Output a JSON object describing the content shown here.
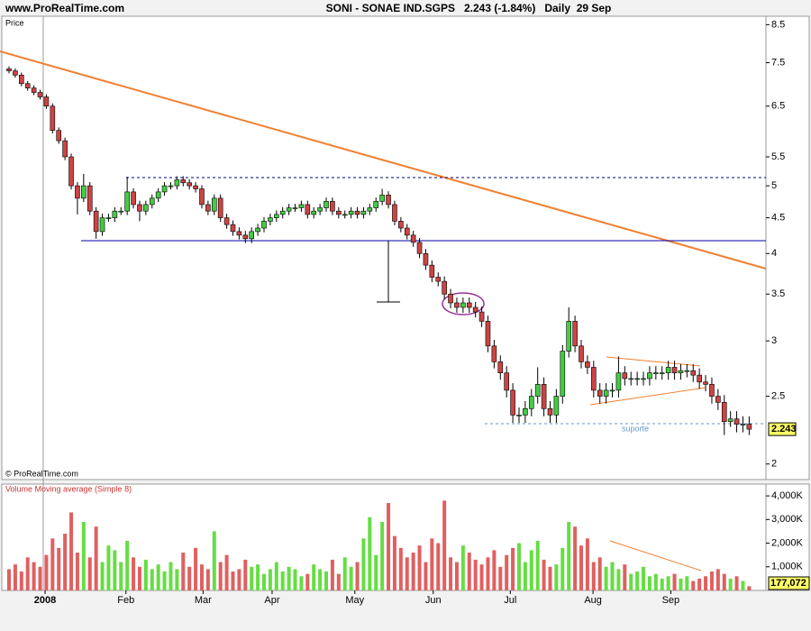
{
  "header": {
    "site": "www.ProRealTime.com",
    "title": "SONI - SONAE IND.SGPS   2.243 (-1.84%)   Daily  29 Sep"
  },
  "chart_data": [
    {
      "type": "candlestick",
      "title": "Price",
      "copyright": "© ProRealTime.com",
      "annotation": "suporte",
      "log_scale": true,
      "up_color": "#44cc44",
      "down_color": "#cc4444",
      "xlim": [
        -1.16,
        121.7
      ],
      "ylim": [
        1.9,
        8.74
      ],
      "yticks": [
        8.5,
        7.5,
        6.5,
        5.5,
        5,
        4.5,
        4,
        3.5,
        3,
        2.5,
        2
      ],
      "open": [
        7.35,
        7.3,
        7.2,
        7.0,
        6.9,
        6.8,
        6.7,
        6.5,
        6.0,
        5.8,
        5.5,
        5.0,
        4.8,
        5.0,
        4.6,
        4.3,
        4.5,
        4.5,
        4.6,
        4.6,
        4.9,
        4.7,
        4.6,
        4.7,
        4.8,
        4.9,
        5.0,
        5.0,
        5.1,
        5.05,
        5.0,
        4.95,
        4.7,
        4.6,
        4.8,
        4.5,
        4.4,
        4.3,
        4.25,
        4.2,
        4.3,
        4.35,
        4.45,
        4.5,
        4.55,
        4.6,
        4.65,
        4.65,
        4.7,
        4.55,
        4.6,
        4.65,
        4.75,
        4.6,
        4.55,
        4.55,
        4.6,
        4.55,
        4.6,
        4.65,
        4.75,
        4.85,
        4.7,
        4.45,
        4.35,
        4.25,
        4.15,
        4.0,
        3.85,
        3.7,
        3.65,
        3.5,
        3.4,
        3.35,
        3.4,
        3.35,
        3.3,
        3.2,
        2.95,
        2.8,
        2.7,
        2.55,
        2.35,
        2.35,
        2.4,
        2.5,
        2.6,
        2.4,
        2.35,
        2.5,
        2.9,
        3.2,
        2.95,
        2.8,
        2.75,
        2.55,
        2.5,
        2.55,
        2.55,
        2.7,
        2.65,
        2.65,
        2.65,
        2.65,
        2.7,
        2.7,
        2.7,
        2.75,
        2.7,
        2.72,
        2.72,
        2.68,
        2.62,
        2.6,
        2.5,
        2.45,
        2.3,
        2.32,
        2.28,
        2.28
      ],
      "high": [
        7.41,
        7.36,
        7.26,
        7.06,
        6.96,
        6.86,
        6.76,
        6.56,
        6.06,
        5.86,
        5.56,
        5.06,
        5.2,
        5.06,
        4.66,
        4.56,
        4.56,
        4.66,
        4.66,
        5.15,
        4.96,
        4.76,
        4.76,
        4.86,
        4.96,
        5.06,
        5.06,
        5.16,
        5.16,
        5.11,
        5.06,
        5.01,
        4.76,
        4.86,
        4.86,
        4.56,
        4.46,
        4.36,
        4.31,
        4.36,
        4.41,
        4.51,
        4.56,
        4.61,
        4.66,
        4.71,
        4.71,
        4.76,
        4.76,
        4.66,
        4.71,
        4.81,
        4.81,
        4.66,
        4.61,
        4.66,
        4.66,
        4.66,
        4.71,
        4.81,
        4.95,
        4.91,
        4.76,
        4.51,
        4.41,
        4.31,
        4.21,
        4.06,
        3.91,
        3.76,
        3.71,
        3.56,
        3.46,
        3.46,
        3.46,
        3.41,
        3.36,
        3.26,
        3.01,
        2.86,
        2.76,
        2.61,
        2.41,
        2.46,
        2.56,
        2.75,
        2.66,
        2.46,
        2.56,
        2.96,
        3.35,
        3.26,
        3.01,
        2.86,
        2.81,
        2.61,
        2.61,
        2.61,
        2.85,
        2.76,
        2.71,
        2.71,
        2.71,
        2.76,
        2.76,
        2.76,
        2.81,
        2.81,
        2.78,
        2.78,
        2.78,
        2.74,
        2.68,
        2.66,
        2.56,
        2.51,
        2.38,
        2.38,
        2.34,
        2.34
      ],
      "low": [
        7.24,
        7.14,
        6.94,
        6.84,
        6.74,
        6.64,
        6.44,
        5.94,
        5.74,
        5.44,
        4.94,
        4.55,
        4.74,
        4.54,
        4.2,
        4.24,
        4.44,
        4.44,
        4.54,
        4.54,
        4.64,
        4.45,
        4.54,
        4.64,
        4.74,
        4.84,
        4.94,
        4.94,
        4.99,
        4.94,
        4.89,
        4.64,
        4.54,
        4.54,
        4.44,
        4.34,
        4.24,
        4.19,
        4.14,
        4.14,
        4.24,
        4.29,
        4.39,
        4.44,
        4.49,
        4.54,
        4.59,
        4.59,
        4.49,
        4.49,
        4.54,
        4.59,
        4.54,
        4.49,
        4.49,
        4.49,
        4.49,
        4.49,
        4.54,
        4.59,
        4.69,
        4.64,
        4.39,
        4.29,
        4.19,
        4.09,
        3.94,
        3.79,
        3.64,
        3.59,
        3.44,
        3.34,
        3.29,
        3.29,
        3.29,
        3.24,
        3.14,
        2.89,
        2.74,
        2.64,
        2.49,
        2.29,
        2.29,
        2.29,
        2.34,
        2.44,
        2.34,
        2.29,
        2.29,
        2.44,
        2.84,
        2.89,
        2.74,
        2.69,
        2.49,
        2.44,
        2.44,
        2.49,
        2.49,
        2.59,
        2.59,
        2.59,
        2.59,
        2.59,
        2.64,
        2.64,
        2.64,
        2.64,
        2.64,
        2.66,
        2.62,
        2.56,
        2.54,
        2.44,
        2.39,
        2.2,
        2.26,
        2.22,
        2.22,
        2.2
      ],
      "close": [
        7.3,
        7.2,
        7.0,
        6.9,
        6.8,
        6.7,
        6.5,
        6.0,
        5.8,
        5.5,
        5.0,
        4.8,
        5.0,
        4.6,
        4.3,
        4.5,
        4.5,
        4.6,
        4.6,
        4.9,
        4.7,
        4.6,
        4.7,
        4.8,
        4.9,
        5.0,
        5.0,
        5.1,
        5.05,
        5.0,
        4.95,
        4.7,
        4.6,
        4.8,
        4.5,
        4.4,
        4.3,
        4.25,
        4.2,
        4.3,
        4.35,
        4.45,
        4.5,
        4.55,
        4.6,
        4.65,
        4.65,
        4.7,
        4.55,
        4.6,
        4.65,
        4.75,
        4.6,
        4.55,
        4.55,
        4.6,
        4.55,
        4.6,
        4.65,
        4.75,
        4.85,
        4.7,
        4.45,
        4.35,
        4.25,
        4.15,
        4.0,
        3.85,
        3.7,
        3.65,
        3.5,
        3.4,
        3.35,
        3.4,
        3.35,
        3.3,
        3.2,
        2.95,
        2.8,
        2.7,
        2.55,
        2.35,
        2.35,
        2.4,
        2.5,
        2.6,
        2.4,
        2.35,
        2.5,
        2.9,
        3.2,
        2.95,
        2.8,
        2.75,
        2.55,
        2.5,
        2.55,
        2.55,
        2.7,
        2.65,
        2.65,
        2.65,
        2.65,
        2.7,
        2.7,
        2.7,
        2.75,
        2.7,
        2.72,
        2.72,
        2.68,
        2.62,
        2.6,
        2.5,
        2.45,
        2.3,
        2.32,
        2.28,
        2.28,
        2.243
      ]
    },
    {
      "type": "bar",
      "title": "Volume Moving average (Simple 8)",
      "up_color": "#66dd44",
      "down_color": "#e06060",
      "xlim": [
        -1.16,
        121.7
      ],
      "ylim": [
        0,
        4500
      ],
      "yticks": [
        {
          "value": 4000,
          "label": "4,000K"
        },
        {
          "value": 3000,
          "label": "3,000K"
        },
        {
          "value": 2000,
          "label": "2,000K"
        },
        {
          "value": 1000,
          "label": "1,000K"
        }
      ],
      "xticks": [
        {
          "value": 5.8,
          "label": "2008"
        },
        {
          "value": 18.8,
          "label": "Feb"
        },
        {
          "value": 31.2,
          "label": "Mar"
        },
        {
          "value": 42.3,
          "label": "Apr"
        },
        {
          "value": 55.6,
          "label": "May"
        },
        {
          "value": 68.2,
          "label": "Jun"
        },
        {
          "value": 80.6,
          "label": "Jul"
        },
        {
          "value": 93.9,
          "label": "Aug"
        },
        {
          "value": 106.4,
          "label": "Sep"
        }
      ],
      "last_label": "177,072",
      "values": [
        900,
        1100,
        800,
        1400,
        1200,
        1000,
        1500,
        2200,
        1800,
        2400,
        3300,
        1600,
        2900,
        1400,
        2700,
        1200,
        1900,
        1700,
        1200,
        2100,
        1400,
        1000,
        1300,
        900,
        1100,
        800,
        1200,
        900,
        1600,
        1000,
        1800,
        1100,
        900,
        2500,
        1200,
        1500,
        800,
        900,
        1300,
        1000,
        1100,
        700,
        900,
        1200,
        800,
        1000,
        900,
        600,
        700,
        1100,
        900,
        800,
        1300,
        700,
        1400,
        1000,
        1200,
        2200,
        3100,
        1500,
        2900,
        3700,
        2300,
        1800,
        1400,
        1600,
        1900,
        1200,
        2200,
        2000,
        3800,
        1400,
        1200,
        1900,
        1600,
        1300,
        1100,
        1400,
        1700,
        1000,
        1500,
        1800,
        2000,
        1200,
        1700,
        2100,
        1300,
        1000,
        1100,
        1800,
        2900,
        2700,
        1900,
        2200,
        1200,
        1400,
        1000,
        1200,
        900,
        1100,
        700,
        800,
        1000,
        600,
        700,
        500,
        600,
        700,
        500,
        600,
        400,
        500,
        600,
        800,
        900,
        700,
        500,
        600,
        400,
        177.072
      ]
    }
  ]
}
